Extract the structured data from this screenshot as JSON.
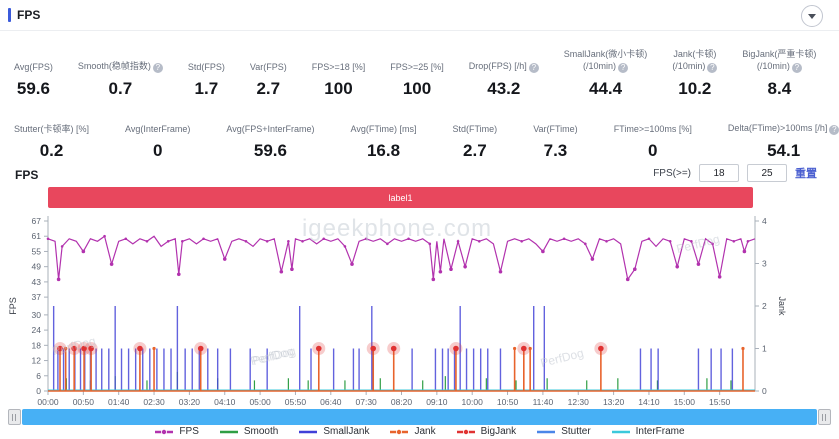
{
  "header": {
    "title": "FPS"
  },
  "controls": {
    "section_label": "FPS",
    "fps_threshold_label": "FPS(>=)",
    "threshold1": "18",
    "threshold2": "25",
    "reset_label": "重置"
  },
  "banner": {
    "label": "label1"
  },
  "stats_row1": [
    {
      "label": "Avg(FPS)",
      "value": "59.6"
    },
    {
      "label": "Smooth(稳帧指数)",
      "help": true,
      "value": "0.7"
    },
    {
      "label": "Std(FPS)",
      "value": "1.7"
    },
    {
      "label": "Var(FPS)",
      "value": "2.7"
    },
    {
      "label": "FPS>=18 [%]",
      "value": "100"
    },
    {
      "label": "FPS>=25 [%]",
      "value": "100"
    },
    {
      "label": "Drop(FPS) [/h]",
      "help": true,
      "value": "43.2"
    },
    {
      "label": "SmallJank(微小卡顿)",
      "label2": "(/10min)",
      "help": true,
      "value": "44.4"
    },
    {
      "label": "Jank(卡顿)",
      "label2": "(/10min)",
      "help": true,
      "value": "10.2"
    },
    {
      "label": "BigJank(严重卡顿)",
      "label2": "(/10min)",
      "help": true,
      "value": "8.4"
    }
  ],
  "stats_row2": [
    {
      "label": "Stutter(卡顿率) [%]",
      "value": "0.2"
    },
    {
      "label": "Avg(InterFrame)",
      "value": "0"
    },
    {
      "label": "Avg(FPS+InterFrame)",
      "value": "59.6"
    },
    {
      "label": "Avg(FTime) [ms]",
      "value": "16.8"
    },
    {
      "label": "Std(FTime)",
      "value": "2.7"
    },
    {
      "label": "Var(FTime)",
      "value": "7.3"
    },
    {
      "label": "FTime>=100ms [%]",
      "value": "0"
    },
    {
      "label": "Delta(FTime)>100ms [/h]",
      "help": true,
      "value": "54.1"
    }
  ],
  "chart_data": {
    "type": "line",
    "title": "label1",
    "x_ticks": [
      "00:00",
      "00:50",
      "01:40",
      "02:30",
      "03:20",
      "04:10",
      "05:00",
      "05:50",
      "06:40",
      "07:30",
      "08:20",
      "09:10",
      "10:00",
      "10:50",
      "11:40",
      "12:30",
      "13:20",
      "14:10",
      "15:00",
      "15:50"
    ],
    "x_tick_interval_seconds": 50,
    "x_domain_seconds": [
      0,
      1000
    ],
    "left_axis": {
      "label": "FPS",
      "ticks": [
        0,
        6,
        12,
        18,
        24,
        30,
        37,
        43,
        49,
        55,
        61,
        67
      ],
      "range": [
        0,
        67
      ]
    },
    "right_axis": {
      "label": "Jank",
      "ticks": [
        0,
        1,
        2,
        3,
        4
      ],
      "range": [
        0,
        4
      ]
    },
    "grid": false,
    "legend_position": "bottom",
    "series": [
      {
        "name": "FPS",
        "axis": "left",
        "color": "#b232ae",
        "style": "line-with-markers",
        "points": [
          [
            0,
            60
          ],
          [
            10,
            59
          ],
          [
            15,
            44
          ],
          [
            20,
            57
          ],
          [
            30,
            60
          ],
          [
            40,
            59
          ],
          [
            50,
            55
          ],
          [
            60,
            60
          ],
          [
            70,
            59
          ],
          [
            80,
            61
          ],
          [
            90,
            50
          ],
          [
            100,
            59
          ],
          [
            110,
            60
          ],
          [
            120,
            58
          ],
          [
            130,
            60
          ],
          [
            140,
            59
          ],
          [
            150,
            61
          ],
          [
            160,
            57
          ],
          [
            170,
            59
          ],
          [
            180,
            60
          ],
          [
            185,
            46
          ],
          [
            190,
            59
          ],
          [
            200,
            60
          ],
          [
            210,
            58
          ],
          [
            220,
            60
          ],
          [
            230,
            59
          ],
          [
            240,
            60
          ],
          [
            250,
            52
          ],
          [
            260,
            59
          ],
          [
            270,
            60
          ],
          [
            280,
            59
          ],
          [
            290,
            57
          ],
          [
            300,
            60
          ],
          [
            310,
            59
          ],
          [
            320,
            60
          ],
          [
            330,
            47
          ],
          [
            340,
            59
          ],
          [
            345,
            48
          ],
          [
            350,
            60
          ],
          [
            360,
            59
          ],
          [
            370,
            60
          ],
          [
            380,
            58
          ],
          [
            390,
            60
          ],
          [
            400,
            59
          ],
          [
            410,
            60
          ],
          [
            420,
            57
          ],
          [
            430,
            50
          ],
          [
            440,
            59
          ],
          [
            450,
            60
          ],
          [
            460,
            59
          ],
          [
            470,
            60
          ],
          [
            480,
            58
          ],
          [
            490,
            60
          ],
          [
            500,
            59
          ],
          [
            510,
            60
          ],
          [
            520,
            59
          ],
          [
            530,
            60
          ],
          [
            540,
            58
          ],
          [
            545,
            44
          ],
          [
            550,
            59
          ],
          [
            555,
            47
          ],
          [
            560,
            60
          ],
          [
            570,
            48
          ],
          [
            580,
            59
          ],
          [
            590,
            49
          ],
          [
            600,
            60
          ],
          [
            610,
            59
          ],
          [
            620,
            60
          ],
          [
            630,
            58
          ],
          [
            640,
            47
          ],
          [
            650,
            59
          ],
          [
            660,
            60
          ],
          [
            670,
            59
          ],
          [
            680,
            60
          ],
          [
            690,
            58
          ],
          [
            700,
            55
          ],
          [
            710,
            60
          ],
          [
            720,
            59
          ],
          [
            730,
            60
          ],
          [
            740,
            59
          ],
          [
            750,
            60
          ],
          [
            760,
            58
          ],
          [
            770,
            52
          ],
          [
            780,
            60
          ],
          [
            790,
            59
          ],
          [
            800,
            60
          ],
          [
            810,
            58
          ],
          [
            820,
            44
          ],
          [
            830,
            48
          ],
          [
            840,
            59
          ],
          [
            850,
            60
          ],
          [
            860,
            57
          ],
          [
            870,
            60
          ],
          [
            880,
            59
          ],
          [
            890,
            49
          ],
          [
            900,
            60
          ],
          [
            910,
            59
          ],
          [
            920,
            50
          ],
          [
            930,
            60
          ],
          [
            940,
            58
          ],
          [
            950,
            45
          ],
          [
            960,
            60
          ],
          [
            970,
            59
          ],
          [
            980,
            60
          ],
          [
            985,
            55
          ],
          [
            990,
            59
          ],
          [
            1000,
            60
          ]
        ]
      },
      {
        "name": "Smooth",
        "axis": "right",
        "color": "#2f9e44",
        "style": "spikes",
        "spikes": [
          [
            26,
            0.3
          ],
          [
            60,
            0.25
          ],
          [
            95,
            0.35
          ],
          [
            140,
            0.25
          ],
          [
            183,
            0.45
          ],
          [
            240,
            0.3
          ],
          [
            292,
            0.25
          ],
          [
            340,
            0.3
          ],
          [
            368,
            0.25
          ],
          [
            420,
            0.25
          ],
          [
            470,
            0.3
          ],
          [
            530,
            0.25
          ],
          [
            562,
            0.35
          ],
          [
            620,
            0.3
          ],
          [
            662,
            0.25
          ],
          [
            706,
            0.3
          ],
          [
            762,
            0.25
          ],
          [
            806,
            0.3
          ],
          [
            862,
            0.25
          ],
          [
            932,
            0.3
          ],
          [
            966,
            0.25
          ]
        ]
      },
      {
        "name": "SmallJank",
        "axis": "right",
        "color": "#4646d8",
        "style": "spikes",
        "spikes": [
          [
            8,
            2
          ],
          [
            14,
            1
          ],
          [
            22,
            1
          ],
          [
            30,
            1
          ],
          [
            38,
            1
          ],
          [
            46,
            1
          ],
          [
            52,
            1
          ],
          [
            60,
            1
          ],
          [
            68,
            1
          ],
          [
            76,
            1
          ],
          [
            86,
            1
          ],
          [
            95,
            2
          ],
          [
            104,
            1
          ],
          [
            114,
            1
          ],
          [
            124,
            1
          ],
          [
            134,
            1
          ],
          [
            144,
            1
          ],
          [
            154,
            1
          ],
          [
            164,
            1
          ],
          [
            174,
            1
          ],
          [
            183,
            2
          ],
          [
            194,
            1
          ],
          [
            204,
            1
          ],
          [
            214,
            1
          ],
          [
            226,
            1
          ],
          [
            240,
            1
          ],
          [
            258,
            1
          ],
          [
            286,
            1
          ],
          [
            310,
            1
          ],
          [
            356,
            2
          ],
          [
            372,
            1
          ],
          [
            404,
            1
          ],
          [
            432,
            1
          ],
          [
            440,
            1
          ],
          [
            458,
            2
          ],
          [
            515,
            1
          ],
          [
            548,
            1
          ],
          [
            558,
            1
          ],
          [
            566,
            1
          ],
          [
            575,
            1
          ],
          [
            583,
            2
          ],
          [
            592,
            1
          ],
          [
            602,
            1
          ],
          [
            612,
            1
          ],
          [
            622,
            1
          ],
          [
            640,
            1
          ],
          [
            687,
            2
          ],
          [
            702,
            2
          ],
          [
            838,
            1
          ],
          [
            853,
            1
          ],
          [
            863,
            1
          ],
          [
            920,
            1
          ],
          [
            938,
            1
          ],
          [
            952,
            1
          ],
          [
            968,
            1
          ]
        ]
      },
      {
        "name": "Jank",
        "axis": "right",
        "color": "#e8632c",
        "style": "spikes-with-baseline",
        "spikes": [
          [
            17,
            1
          ],
          [
            25,
            1
          ],
          [
            37,
            1
          ],
          [
            51,
            1
          ],
          [
            61,
            1
          ],
          [
            130,
            1
          ],
          [
            150,
            1
          ],
          [
            216,
            1
          ],
          [
            383,
            1
          ],
          [
            460,
            1
          ],
          [
            489,
            1
          ],
          [
            577,
            1
          ],
          [
            660,
            1
          ],
          [
            673,
            1
          ],
          [
            682,
            1
          ],
          [
            782,
            1
          ],
          [
            983,
            1
          ]
        ]
      },
      {
        "name": "BigJank",
        "axis": "right",
        "color": "#e03232",
        "style": "glow-markers",
        "points": [
          [
            17,
            1
          ],
          [
            37,
            1
          ],
          [
            51,
            1
          ],
          [
            61,
            1
          ],
          [
            130,
            1
          ],
          [
            216,
            1
          ],
          [
            383,
            1
          ],
          [
            460,
            1
          ],
          [
            489,
            1
          ],
          [
            577,
            1
          ],
          [
            673,
            1
          ],
          [
            782,
            1
          ]
        ]
      },
      {
        "name": "Stutter",
        "axis": "right",
        "color": "#4a86e8",
        "style": "baseline",
        "baseline": 0
      },
      {
        "name": "InterFrame",
        "axis": "right",
        "color": "#3bc9db",
        "style": "baseline",
        "baseline": 0
      }
    ]
  },
  "legend": [
    {
      "label": "FPS",
      "color": "#b232ae",
      "marker": "circle"
    },
    {
      "label": "Smooth",
      "color": "#2f9e44",
      "marker": "none"
    },
    {
      "label": "SmallJank",
      "color": "#4040d8",
      "marker": "none"
    },
    {
      "label": "Jank",
      "color": "#e8632c",
      "marker": "circle"
    },
    {
      "label": "BigJank",
      "color": "#e03232",
      "marker": "circle"
    },
    {
      "label": "Stutter",
      "color": "#4a86e8",
      "marker": "none"
    },
    {
      "label": "InterFrame",
      "color": "#3bc9db",
      "marker": "none"
    }
  ],
  "watermarks": {
    "site": "igeekphone.com",
    "brand": "PerfDog"
  },
  "colors": {
    "accent_blue": "#3b5bdb",
    "banner_red": "#e8475d",
    "scrollbar_blue": "#47b0f5",
    "reset_link": "#4a5fd0"
  }
}
